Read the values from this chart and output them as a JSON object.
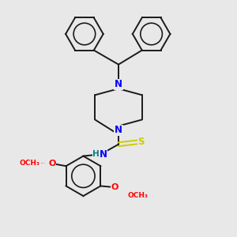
{
  "background_color": "#e8e8e8",
  "bond_color": "#1a1a1a",
  "N_color": "#0000ff",
  "O_color": "#ff0000",
  "S_color": "#cccc00",
  "H_color": "#008080",
  "figsize": [
    3.0,
    3.0
  ],
  "dpi": 100,
  "xlim": [
    0,
    10
  ],
  "ylim": [
    0,
    10
  ]
}
